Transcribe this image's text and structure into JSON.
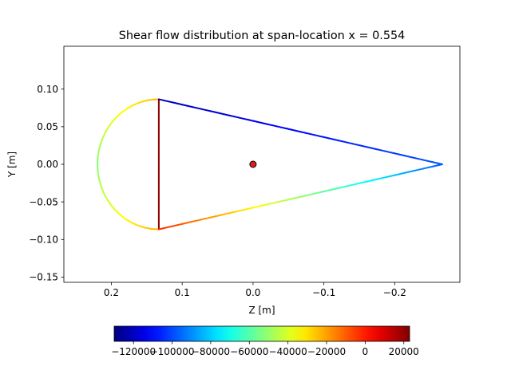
{
  "chart_data": {
    "type": "line",
    "title": "Shear flow distribution at span-location x = 0.554",
    "xlabel": "Z [m]",
    "ylabel": "Y [m]",
    "x_reversed": true,
    "xlim": [
      0.267,
      -0.292
    ],
    "ylim": [
      -0.157,
      0.157
    ],
    "x_ticks": [
      0.2,
      0.1,
      0.0,
      -0.1,
      -0.2
    ],
    "x_tick_labels": [
      "0.2",
      "0.1",
      "0.0",
      "−0.1",
      "−0.2"
    ],
    "y_ticks": [
      0.1,
      0.05,
      0.0,
      -0.05,
      -0.1,
      -0.15
    ],
    "y_tick_labels": [
      "0.10",
      "0.05",
      "0.00",
      "−0.05",
      "−0.10",
      "−0.15"
    ],
    "grid": false,
    "colormap": "jet",
    "color_range": [
      -130000,
      23000
    ],
    "colorbar_ticks": [
      -120000,
      -100000,
      -80000,
      -60000,
      -40000,
      -20000,
      0,
      20000
    ],
    "colorbar_tick_labels": [
      "−120000",
      "−100000",
      "−80000",
      "−60000",
      "−40000",
      "−20000",
      "0",
      "20000"
    ],
    "marker": {
      "z": 0.0,
      "y": 0.0,
      "color": "#e31a1c"
    },
    "segments": [
      {
        "name": "leading-edge-upper-arc",
        "shape": "arc",
        "center": [
          0.133,
          0.0
        ],
        "radius": 0.0865,
        "theta_from": 90,
        "theta_to": 180,
        "q_from": -23000,
        "q_to": -52000
      },
      {
        "name": "leading-edge-lower-arc",
        "shape": "arc",
        "center": [
          0.133,
          0.0
        ],
        "radius": 0.0865,
        "theta_from": 180,
        "theta_to": 270,
        "q_from": -52000,
        "q_to": -23000
      },
      {
        "name": "spar-web",
        "shape": "line",
        "points": [
          [
            0.133,
            0.0865
          ],
          [
            0.133,
            -0.0865
          ]
        ],
        "q_from": 20000,
        "q_to": 20000
      },
      {
        "name": "upper-skin",
        "shape": "line",
        "points": [
          [
            0.133,
            0.0865
          ],
          [
            -0.267,
            0.0
          ]
        ],
        "q_from": -122000,
        "q_to": -98000
      },
      {
        "name": "lower-skin",
        "shape": "line",
        "points": [
          [
            -0.267,
            0.0
          ],
          [
            0.133,
            -0.0865
          ]
        ],
        "q_from": -98000,
        "q_to": -2000
      }
    ]
  }
}
